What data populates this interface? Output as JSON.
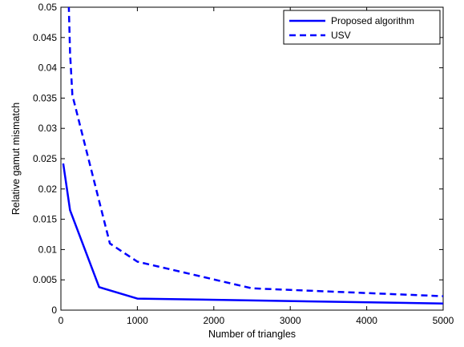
{
  "chart_data": {
    "type": "line",
    "title": "",
    "xlabel": "Number of triangles",
    "ylabel": "Relative gamut mismatch",
    "xlim": [
      0,
      5000
    ],
    "ylim": [
      0,
      0.05
    ],
    "x_ticks": [
      0,
      1000,
      2000,
      3000,
      4000,
      5000
    ],
    "x_tick_labels": [
      "0",
      "1000",
      "2000",
      "3000",
      "4000",
      "5000"
    ],
    "y_ticks": [
      0,
      0.005,
      0.01,
      0.015,
      0.02,
      0.025,
      0.03,
      0.035,
      0.04,
      0.045,
      0.05
    ],
    "y_tick_labels": [
      "0",
      "0.005",
      "0.01",
      "0.015",
      "0.02",
      "0.025",
      "0.03",
      "0.035",
      "0.04",
      "0.045",
      "0.05"
    ],
    "grid": false,
    "legend_position": "top-right",
    "series": [
      {
        "name": "Proposed algorithm",
        "style": "solid",
        "color": "#0000ff",
        "points": [
          [
            30,
            0.0242
          ],
          [
            120,
            0.0165
          ],
          [
            500,
            0.0038
          ],
          [
            1000,
            0.0019
          ],
          [
            5000,
            0.0011
          ]
        ]
      },
      {
        "name": "USV",
        "style": "dashed",
        "color": "#0000ff",
        "points": [
          [
            100,
            0.052
          ],
          [
            120,
            0.0425
          ],
          [
            150,
            0.0355
          ],
          [
            640,
            0.011
          ],
          [
            1000,
            0.008
          ],
          [
            2500,
            0.0036
          ],
          [
            5000,
            0.0023
          ]
        ]
      }
    ]
  }
}
